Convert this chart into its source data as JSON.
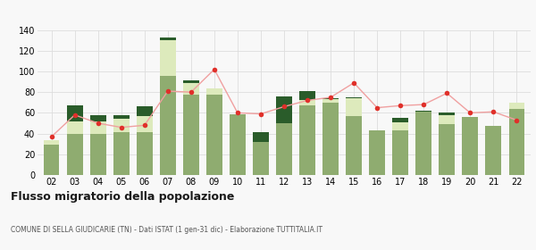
{
  "years": [
    "02",
    "03",
    "04",
    "05",
    "06",
    "07",
    "08",
    "09",
    "10",
    "11",
    "12",
    "13",
    "14",
    "15",
    "16",
    "17",
    "18",
    "19",
    "20",
    "21",
    "22"
  ],
  "iscritti_comuni": [
    29,
    40,
    40,
    41,
    41,
    96,
    78,
    78,
    59,
    32,
    50,
    67,
    70,
    57,
    43,
    43,
    61,
    49,
    56,
    47,
    64
  ],
  "iscritti_estero": [
    5,
    12,
    12,
    13,
    16,
    34,
    11,
    6,
    0,
    0,
    0,
    5,
    3,
    17,
    0,
    8,
    0,
    9,
    0,
    0,
    6
  ],
  "iscritti_altri": [
    0,
    15,
    6,
    4,
    9,
    3,
    2,
    0,
    0,
    9,
    26,
    9,
    1,
    1,
    0,
    4,
    1,
    2,
    0,
    0,
    0
  ],
  "cancellati": [
    37,
    58,
    50,
    46,
    48,
    81,
    80,
    102,
    60,
    59,
    66,
    72,
    75,
    89,
    65,
    67,
    68,
    79,
    60,
    61,
    53
  ],
  "color_comuni": "#8fac70",
  "color_estero": "#ddeabc",
  "color_altri": "#2a5c2a",
  "color_cancellati": "#e0302a",
  "color_line": "#f0a0a0",
  "ylim": [
    0,
    140
  ],
  "yticks": [
    0,
    20,
    40,
    60,
    80,
    100,
    120,
    140
  ],
  "title": "Flusso migratorio della popolazione",
  "subtitle": "COMUNE DI SELLA GIUDICARIE (TN) - Dati ISTAT (1 gen-31 dic) - Elaborazione TUTTITALIA.IT",
  "bg_color": "#f8f8f8",
  "grid_color": "#dddddd"
}
